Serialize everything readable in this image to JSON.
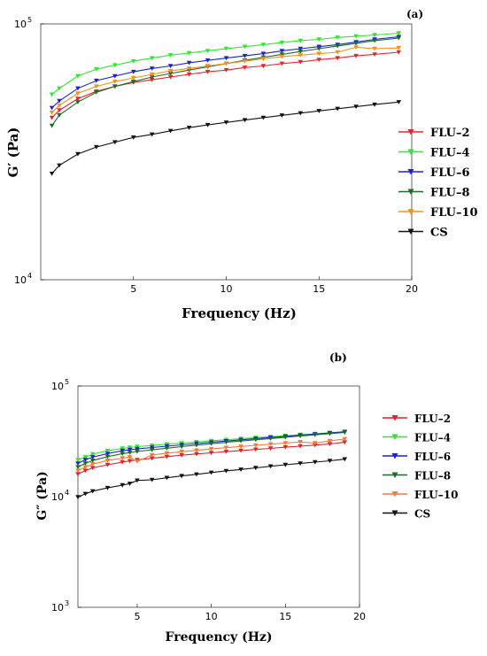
{
  "figure": {
    "panel_a_label": "(a)",
    "panel_b_label": "(b)"
  },
  "chart_data": [
    {
      "type": "line",
      "panel": "(a)",
      "xlabel": "Frequency (Hz)",
      "ylabel": "G′ (Pa)",
      "y_scale": "log",
      "xlim": [
        0,
        20
      ],
      "ylim": [
        10000,
        100000
      ],
      "x_ticks": [
        "5",
        "10",
        "15",
        "20"
      ],
      "y_ticks": [
        {
          "base": "10",
          "exp": "5"
        },
        {
          "base": "10",
          "exp": "4"
        }
      ],
      "grid": false,
      "legend_position": "right",
      "x": [
        0.6,
        1,
        2,
        3,
        4,
        5,
        6,
        7,
        8,
        9,
        10,
        11,
        12,
        13,
        14,
        15,
        16,
        17,
        18,
        19.3
      ],
      "series": [
        {
          "name": "FLU–2",
          "color": "#e8232a",
          "values": [
            43000,
            46000,
            51000,
            54500,
            57000,
            59000,
            60500,
            62000,
            63500,
            65000,
            66000,
            67500,
            68500,
            70000,
            71000,
            72500,
            73500,
            75000,
            76000,
            77500
          ]
        },
        {
          "name": "FLU–4",
          "color": "#2ee62e",
          "values": [
            53000,
            56000,
            62500,
            66500,
            69000,
            71500,
            73500,
            75500,
            77000,
            78500,
            80000,
            81500,
            83000,
            84500,
            86000,
            87000,
            88500,
            89500,
            90500,
            92000
          ]
        },
        {
          "name": "FLU–6",
          "color": "#1a22cc",
          "values": [
            47000,
            50000,
            56000,
            60000,
            62500,
            65000,
            67000,
            68500,
            70500,
            72000,
            73500,
            75000,
            76500,
            78500,
            80000,
            81500,
            83000,
            85000,
            87000,
            89000
          ]
        },
        {
          "name": "FLU–8",
          "color": "#1d6b2a",
          "values": [
            40000,
            44000,
            49500,
            54000,
            57000,
            59500,
            62000,
            64000,
            66000,
            68000,
            70000,
            72000,
            74000,
            76000,
            78000,
            80000,
            82000,
            84000,
            86000,
            88000
          ]
        },
        {
          "name": "FLU–10",
          "color": "#f0901e",
          "values": [
            45000,
            48000,
            53500,
            57000,
            59500,
            61500,
            63500,
            65500,
            67000,
            68500,
            70000,
            71500,
            73000,
            74500,
            75500,
            76500,
            77500,
            81000,
            80000,
            80500
          ]
        },
        {
          "name": "CS",
          "color": "#111111",
          "values": [
            26000,
            28000,
            31000,
            33000,
            34500,
            36000,
            37000,
            38200,
            39300,
            40300,
            41200,
            42100,
            43000,
            43900,
            44800,
            45700,
            46600,
            47500,
            48400,
            49500
          ]
        }
      ]
    },
    {
      "type": "line",
      "panel": "(b)",
      "xlabel": "Frequency (Hz)",
      "ylabel": "G″ (Pa)",
      "y_scale": "log",
      "xlim": [
        1,
        20
      ],
      "ylim": [
        1000,
        100000
      ],
      "x_ticks": [
        "5",
        "10",
        "15",
        "20"
      ],
      "y_ticks": [
        {
          "base": "10",
          "exp": "5"
        },
        {
          "base": "10",
          "exp": "4"
        },
        {
          "base": "10",
          "exp": "3"
        }
      ],
      "grid": false,
      "legend_position": "right",
      "x": [
        1,
        1.5,
        2,
        3,
        4,
        4.5,
        5,
        6,
        7,
        8,
        9,
        10,
        11,
        12,
        13,
        14,
        15,
        16,
        17,
        18,
        19
      ],
      "series": [
        {
          "name": "FLU–2",
          "color": "#d9252a",
          "values": [
            16000,
            17200,
            18200,
            19400,
            20500,
            21000,
            21500,
            22200,
            23000,
            23700,
            24300,
            24900,
            25500,
            26100,
            26700,
            27300,
            28000,
            28600,
            29200,
            30000,
            31000
          ]
        },
        {
          "name": "FLU–4",
          "color": "#2ee62e",
          "values": [
            21500,
            22800,
            24200,
            26000,
            27300,
            27800,
            28300,
            29000,
            29800,
            30500,
            31200,
            32000,
            32700,
            33400,
            34100,
            34800,
            35500,
            36300,
            37000,
            37800,
            38700
          ]
        },
        {
          "name": "FLU–6",
          "color": "#1a22cc",
          "values": [
            20000,
            21500,
            22800,
            24500,
            26000,
            26500,
            27000,
            27800,
            28600,
            29400,
            30200,
            31000,
            31800,
            32600,
            33400,
            34200,
            35000,
            35900,
            36700,
            37600,
            38500
          ]
        },
        {
          "name": "FLU–8",
          "color": "#1d6b2a",
          "values": [
            18500,
            20000,
            21200,
            23000,
            24500,
            25000,
            25600,
            26500,
            27400,
            28300,
            29200,
            30100,
            31000,
            31800,
            32700,
            33500,
            34400,
            35300,
            36200,
            37100,
            38000
          ]
        },
        {
          "name": "FLU–10",
          "color": "#f07a3a",
          "values": [
            17200,
            18500,
            19700,
            21200,
            22300,
            22800,
            20800,
            23800,
            24700,
            25500,
            26200,
            27000,
            27700,
            28400,
            29100,
            29800,
            30500,
            31200,
            30500,
            32000,
            33200
          ]
        },
        {
          "name": "CS",
          "color": "#111111",
          "values": [
            9900,
            10600,
            11200,
            12000,
            12700,
            13100,
            14000,
            14200,
            14800,
            15400,
            15900,
            16500,
            17100,
            17600,
            18200,
            18800,
            19400,
            20000,
            20500,
            21100,
            21800
          ]
        }
      ]
    }
  ]
}
